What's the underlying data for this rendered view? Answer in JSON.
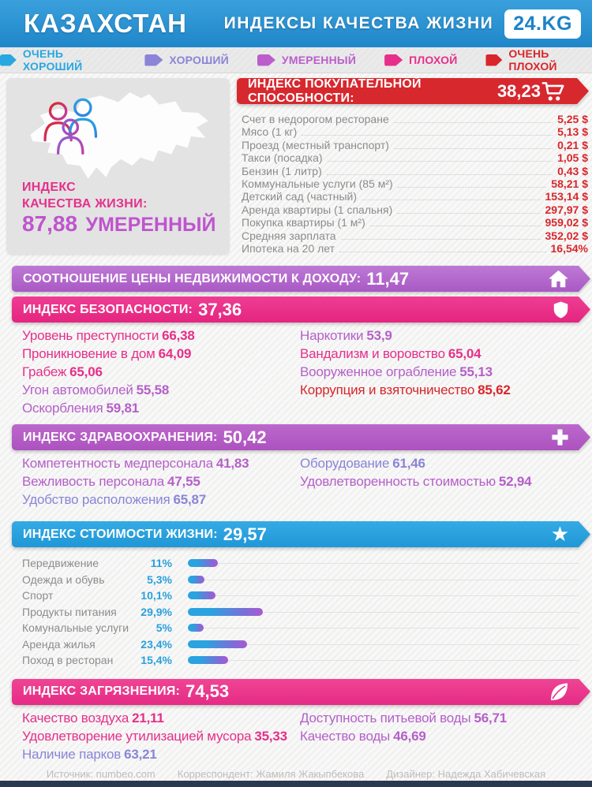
{
  "header": {
    "country": "КАЗАХСТАН",
    "title": "ИНДЕКСЫ КАЧЕСТВА ЖИЗНИ",
    "logo": "24.KG"
  },
  "palette": {
    "blue": "#29a7e0",
    "periwinkle": "#8b84d7",
    "orchid": "#b55fc9",
    "pink": "#e62f8a",
    "red": "#d8262b"
  },
  "legend": {
    "items": [
      {
        "label": "ОЧЕНЬ ХОРОШИЙ",
        "color": "#29a7e0"
      },
      {
        "label": "ХОРОШИЙ",
        "color": "#8b84d7"
      },
      {
        "label": "УМЕРЕННЫЙ",
        "color": "#bb5ecb"
      },
      {
        "label": "ПЛОХОЙ",
        "color": "#e62f8a"
      },
      {
        "label": "ОЧЕНЬ ПЛОХОЙ",
        "color": "#d8262b"
      }
    ]
  },
  "quality": {
    "line1": "ИНДЕКС",
    "line2": "КАЧЕСТВА ЖИЗНИ:",
    "value": "87,88",
    "rating": "УМЕРЕННЫЙ"
  },
  "purchasing": {
    "title": "ИНДЕКС ПОКУПАТЕЛЬНОЙ СПОСОБНОСТИ:",
    "value": "38,23",
    "items": [
      {
        "label": "Счет в недорогом ресторане",
        "value": "5,25 $"
      },
      {
        "label": "Мясо (1 кг)",
        "value": "5,13 $"
      },
      {
        "label": "Проезд (местный транспорт)",
        "value": "0,21 $"
      },
      {
        "label": "Такси (посадка)",
        "value": "1,05 $"
      },
      {
        "label": "Бензин (1 литр)",
        "value": "0,43 $"
      },
      {
        "label": "Коммунальные услуги (85 м²)",
        "value": "58,21 $"
      },
      {
        "label": "Детский сад (частный)",
        "value": "153,14 $"
      },
      {
        "label": "Аренда квартиры (1 спальня)",
        "value": "297,97 $"
      },
      {
        "label": "Покупка квартиры (1 м²)",
        "value": "959,02 $"
      },
      {
        "label": "Средняя зарплата",
        "value": "352,02 $"
      },
      {
        "label": "Ипотека на 20 лет",
        "value": "16,54%"
      }
    ]
  },
  "property": {
    "title": "СООТНОШЕНИЕ ЦЕНЫ НЕДВИЖИМОСТИ К ДОХОДУ:",
    "value": "11,47"
  },
  "safety": {
    "title": "ИНДЕКС БЕЗОПАСНОСТИ:",
    "value": "37,36",
    "col1": [
      {
        "label": "Уровень преступности",
        "value": "66,38",
        "tone": "pink"
      },
      {
        "label": "Проникновение в дом",
        "value": "64,09",
        "tone": "pink"
      },
      {
        "label": "Грабеж",
        "value": "65,06",
        "tone": "pink"
      },
      {
        "label": "Угон автомобилей",
        "value": "55,58",
        "tone": "orchid"
      },
      {
        "label": "Оскорбления",
        "value": "59,81",
        "tone": "orchid"
      }
    ],
    "col2": [
      {
        "label": "Наркотики",
        "value": "53,9",
        "tone": "orchid"
      },
      {
        "label": "Вандализм и воровство",
        "value": "65,04",
        "tone": "pink"
      },
      {
        "label": "Вооруженное ограбление",
        "value": "55,13",
        "tone": "orchid"
      },
      {
        "label": "Коррупция и взяточничество",
        "value": "85,62",
        "tone": "red"
      }
    ]
  },
  "health": {
    "title": "ИНДЕКС ЗДРАВООХРАНЕНИЯ:",
    "value": "50,42",
    "col1": [
      {
        "label": "Компетентность медперсонала",
        "value": "41,83",
        "tone": "orchid"
      },
      {
        "label": "Вежливость персонала",
        "value": "47,55",
        "tone": "orchid"
      },
      {
        "label": "Удобство расположения",
        "value": "65,87",
        "tone": "periwinkle"
      }
    ],
    "col2": [
      {
        "label": "Оборудование",
        "value": "61,46",
        "tone": "periwinkle"
      },
      {
        "label": "Удовлетворенность стоимостью",
        "value": "52,94",
        "tone": "orchid"
      }
    ]
  },
  "cost": {
    "title": "ИНДЕКС СТОИМОСТИ ЖИЗНИ:",
    "value": "29,57"
  },
  "chart_data": {
    "type": "bar",
    "title": "ИНДЕКС СТОИМОСТИ ЖИЗНИ: 29,57",
    "categories": [
      "Передвижение",
      "Одежда и обувь",
      "Спорт",
      "Продукты питания",
      "Комунальные услуги",
      "Аренда жилья",
      "Поход в ресторан"
    ],
    "values": [
      11,
      5.3,
      10.1,
      29.9,
      5,
      23.4,
      15.4
    ],
    "value_labels": [
      "11%",
      "5,3%",
      "10,1%",
      "29,9%",
      "5%",
      "23,4%",
      "15,4%"
    ],
    "unit": "%",
    "xlabel": "",
    "ylabel": "",
    "xlim": [
      0,
      100
    ],
    "grid": false,
    "bar_gradient": [
      "#2aa3e0",
      "#a85ad0"
    ]
  },
  "pollution": {
    "title": "ИНДЕКС ЗАГРЯЗНЕНИЯ:",
    "value": "74,53",
    "col1": [
      {
        "label": "Качество воздуха",
        "value": "21,11",
        "tone": "pink"
      },
      {
        "label": "Удовлетворение утилизацией мусора",
        "value": "35,33",
        "tone": "pink"
      },
      {
        "label": "Наличие парков",
        "value": "63,21",
        "tone": "periwinkle"
      }
    ],
    "col2": [
      {
        "label": "Доступность питьевой воды",
        "value": "56,71",
        "tone": "orchid"
      },
      {
        "label": "Качество воды",
        "value": "46,69",
        "tone": "orchid"
      }
    ]
  },
  "footer": {
    "source": "Источник: numbeo.com",
    "correspondent": "Корреспондент: Жамиля Жакыпбекова",
    "designer": "Дизайнер: Надежда Хабичевская"
  }
}
